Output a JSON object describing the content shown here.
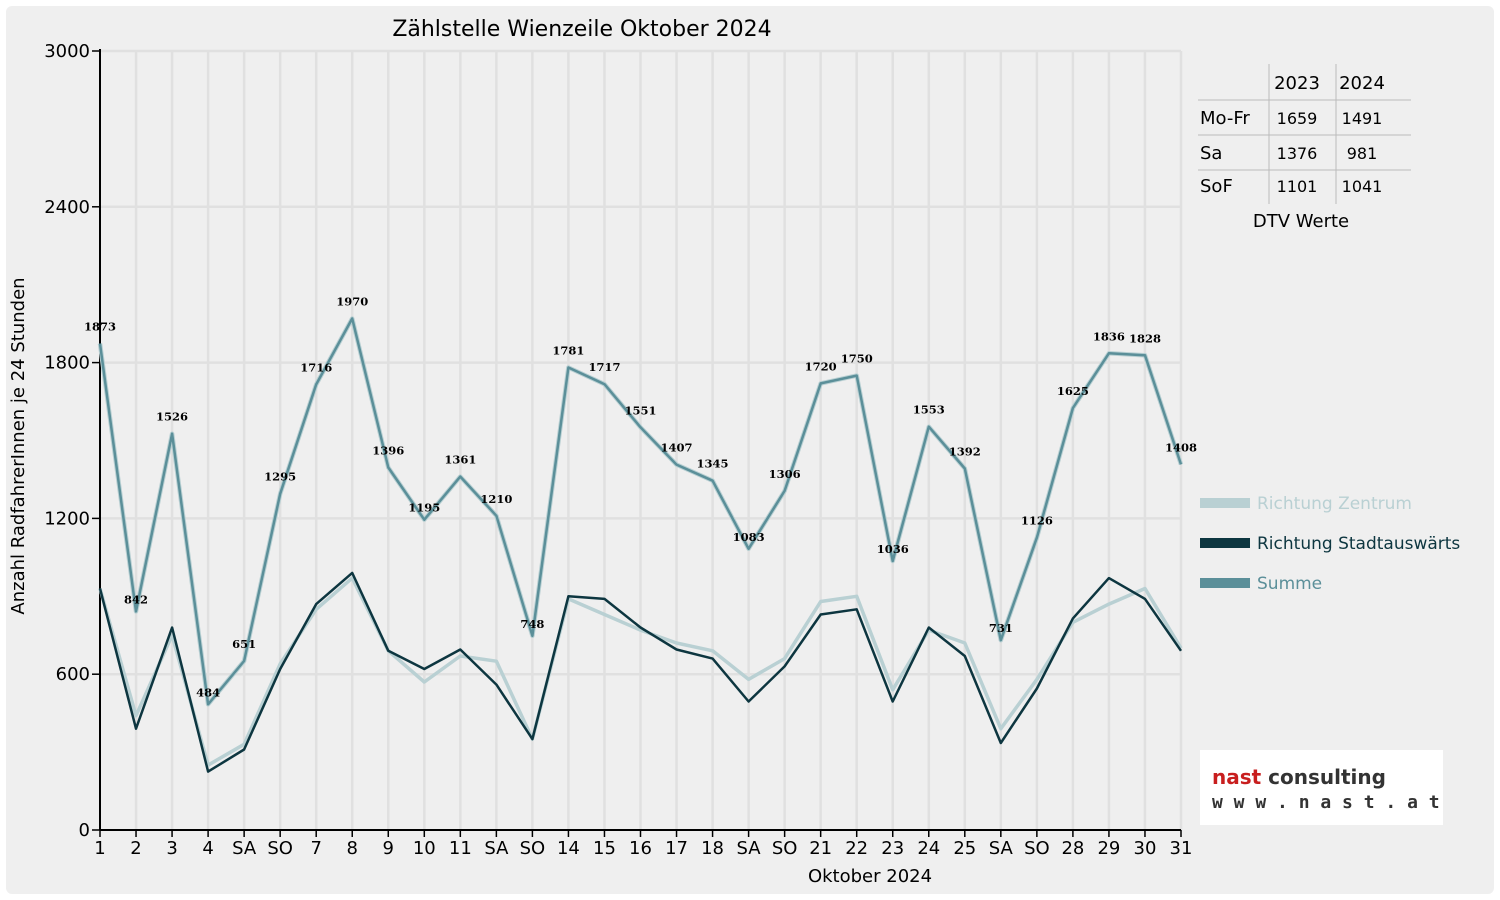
{
  "chart_data": {
    "type": "line",
    "title": "Zählstelle Wienzeile Oktober 2024",
    "xlabel": "Oktober 2024",
    "ylabel": "Anzahl RadfahrerInnen je 24 Stunden",
    "ylim": [
      0,
      3000
    ],
    "yticks": [
      "0",
      "600",
      "1200",
      "1800",
      "2400",
      "3000"
    ],
    "grid": true,
    "legend_position": "right",
    "categories": [
      "1",
      "2",
      "3",
      "4",
      "SA",
      "SO",
      "7",
      "8",
      "9",
      "10",
      "11",
      "SA",
      "SO",
      "14",
      "15",
      "16",
      "17",
      "18",
      "SA",
      "SO",
      "21",
      "22",
      "23",
      "24",
      "25",
      "SA",
      "SO",
      "28",
      "29",
      "30",
      "31"
    ],
    "weekend_categories_red": [
      "SO"
    ],
    "series": [
      {
        "name": "Richtung Zentrum",
        "color": "#b9d0d3",
        "values": [
          930,
          440,
          750,
          250,
          330,
          640,
          850,
          970,
          690,
          570,
          670,
          650,
          350,
          890,
          830,
          770,
          720,
          690,
          580,
          660,
          880,
          900,
          540,
          770,
          720,
          390,
          580,
          800,
          870,
          930,
          700
        ]
      },
      {
        "name": "Richtung Stadtauswärts",
        "color": "#0d3640",
        "values": [
          930,
          390,
          780,
          225,
          310,
          620,
          870,
          990,
          690,
          620,
          695,
          560,
          350,
          900,
          890,
          780,
          695,
          660,
          495,
          630,
          830,
          850,
          495,
          780,
          670,
          335,
          545,
          815,
          970,
          890,
          690
        ]
      },
      {
        "name": "Summe",
        "color": "#5b8f99",
        "values": [
          1873,
          842,
          1526,
          484,
          651,
          1295,
          1716,
          1970,
          1396,
          1195,
          1361,
          1210,
          748,
          1781,
          1717,
          1551,
          1407,
          1345,
          1083,
          1306,
          1720,
          1750,
          1036,
          1553,
          1392,
          731,
          1126,
          1625,
          1836,
          1828,
          1408
        ]
      }
    ],
    "data_labels": [
      "1873",
      "842",
      "1526",
      "484",
      "651",
      "1295",
      "1716",
      "1970",
      "1396",
      "1195",
      "1361",
      "1210",
      "748",
      "1781",
      "1717",
      "1551",
      "1407",
      "1345",
      "1083",
      "1306",
      "1720",
      "1750",
      "1036",
      "1553",
      "1392",
      "731",
      "1126",
      "1625",
      "1836",
      "1828",
      "1408"
    ]
  },
  "dtv_table": {
    "columns": [
      "2023",
      "2024"
    ],
    "rows": [
      {
        "label": "Mo-Fr",
        "v2023": "1659",
        "v2024": "1491"
      },
      {
        "label": "Sa",
        "v2023": "1376",
        "v2024": "981"
      },
      {
        "label": "SoF",
        "v2023": "1101",
        "v2024": "1041"
      }
    ],
    "caption": "DTV Werte"
  },
  "logo": {
    "line1_a": "nast",
    "line1_b": " consulting",
    "line2": "w w w . n a s t . a t"
  },
  "colors": {
    "background": "#efefef",
    "grid": "#e2e2e2",
    "sunday": "#e00000",
    "logo_red": "#c81e1e"
  }
}
